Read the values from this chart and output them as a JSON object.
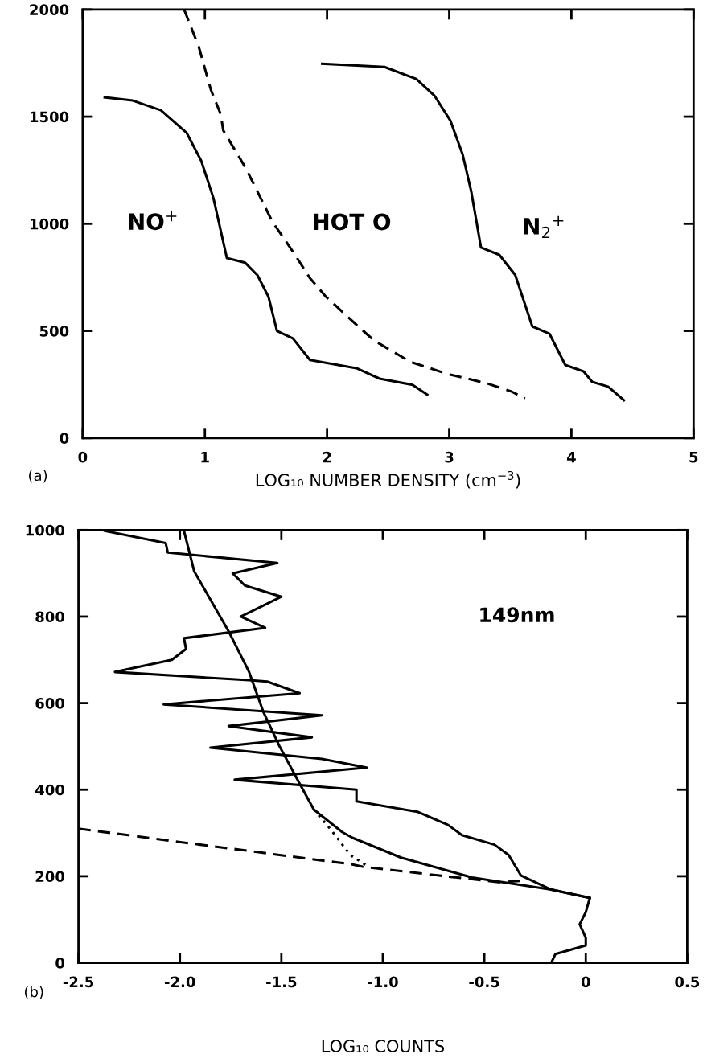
{
  "chart_data": [
    {
      "type": "line",
      "title": "(a)",
      "xlabel": "LOG₁₀ NUMBER DENSITY (cm$^{−3}$)",
      "xlim": [
        0,
        5
      ],
      "ylim": [
        0,
        2000
      ],
      "xticks": [
        0,
        1,
        2,
        3,
        4,
        5
      ],
      "yticks": [
        0,
        500,
        1000,
        1500,
        2000
      ],
      "grid": false,
      "legend": false,
      "marker": "none",
      "annotations": [
        "NO$^{+}$",
        "HOT O",
        "N$_{2}$$^{+}$"
      ],
      "series": [
        {
          "color": "#000000",
          "line_style": "solid",
          "x": [
            0.18,
            0.41,
            0.64,
            0.85,
            0.97,
            1.07,
            1.18,
            1.33,
            1.43,
            1.52,
            1.59,
            1.72,
            1.86,
            2.24,
            2.43,
            2.7,
            2.82
          ],
          "values": [
            1590,
            1575,
            1530,
            1425,
            1294,
            1120,
            840,
            818,
            760,
            660,
            500,
            465,
            364,
            326,
            277,
            248,
            202
          ]
        },
        {
          "color": "#000000",
          "line_style": "dashed",
          "x": [
            0.83,
            0.95,
            1.05,
            1.13,
            1.15,
            1.33,
            1.43,
            1.55,
            1.73,
            1.86,
            1.99,
            2.24,
            2.38,
            2.68,
            2.98,
            3.31,
            3.51,
            3.62
          ],
          "values": [
            2000,
            1826,
            1624,
            1511,
            1436,
            1264,
            1151,
            1012,
            862,
            746,
            660,
            529,
            457,
            356,
            300,
            255,
            217,
            184
          ]
        },
        {
          "color": "#000000",
          "line_style": "solid",
          "x": [
            1.96,
            2.47,
            2.73,
            2.88,
            3.01,
            3.11,
            3.18,
            3.26,
            3.41,
            3.54,
            3.68,
            3.82,
            3.95,
            4.1,
            4.17,
            4.3,
            4.43
          ],
          "values": [
            1747,
            1732,
            1676,
            1597,
            1481,
            1323,
            1151,
            889,
            855,
            761,
            521,
            487,
            341,
            311,
            262,
            240,
            176
          ]
        }
      ]
    },
    {
      "type": "line",
      "title": "(b)",
      "xlabel": "LOG₁₀ COUNTS",
      "xlim": [
        -2.5,
        0.5
      ],
      "ylim": [
        0,
        1000
      ],
      "xticks": [
        -2.5,
        {
          "value": -2.0,
          "label": "-2.0"
        },
        -1.5,
        {
          "value": -1.0,
          "label": "-1.0"
        },
        -0.5,
        {
          "value": 0,
          "label": "0"
        },
        0.5
      ],
      "yticks": [
        0,
        200,
        400,
        600,
        800,
        1000
      ],
      "grid": false,
      "legend": false,
      "marker": "none",
      "annotations": [
        "149nm"
      ],
      "series": [
        {
          "color": "#000000",
          "line_style": "solid",
          "x": [
            -2.37,
            -2.07,
            -2.06,
            -1.52,
            -1.74,
            -1.68,
            -1.5,
            -1.7,
            -1.58,
            -1.98,
            -1.97,
            -2.04,
            -2.32,
            -1.66,
            -1.57,
            -1.41,
            -2.08,
            -1.3,
            -1.76,
            -1.35,
            -1.85,
            -1.3,
            -1.08,
            -1.73,
            -1.13,
            -1.13,
            -0.83,
            -0.68,
            -0.61,
            -0.45,
            -0.38,
            -0.32,
            -0.17,
            0.02,
            0.0,
            -0.03,
            0.0,
            0.0,
            -0.15,
            -0.17
          ],
          "values": [
            998,
            970,
            948,
            924,
            900,
            872,
            846,
            800,
            774,
            750,
            725,
            700,
            672,
            653,
            650,
            623,
            597,
            572,
            547,
            521,
            497,
            471,
            451,
            423,
            400,
            373,
            349,
            319,
            295,
            273,
            249,
            202,
            169,
            150,
            117,
            89,
            58,
            40,
            20,
            0
          ]
        },
        {
          "color": "#000000",
          "line_style": "solid",
          "x": [
            -1.98,
            -1.93,
            -1.76,
            -1.66,
            -1.59,
            -1.51,
            -1.41,
            -1.34,
            -1.2,
            -1.15,
            -0.91,
            -0.56,
            -0.17,
            0.02
          ],
          "values": [
            998,
            905,
            766,
            673,
            581,
            501,
            414,
            354,
            302,
            289,
            243,
            197,
            169,
            150
          ]
        },
        {
          "color": "#000000",
          "line_style": "dashed",
          "x": [
            -2.5,
            -1.9,
            -1.16,
            -1.1,
            -0.73,
            -0.42,
            -0.3
          ],
          "values": [
            310,
            273,
            228,
            222,
            202,
            186,
            190
          ]
        },
        {
          "color": "#000000",
          "line_style": "dotted",
          "x": [
            -1.34,
            -1.26,
            -1.16,
            -1.08
          ],
          "values": [
            354,
            310,
            249,
            225
          ]
        }
      ]
    }
  ]
}
